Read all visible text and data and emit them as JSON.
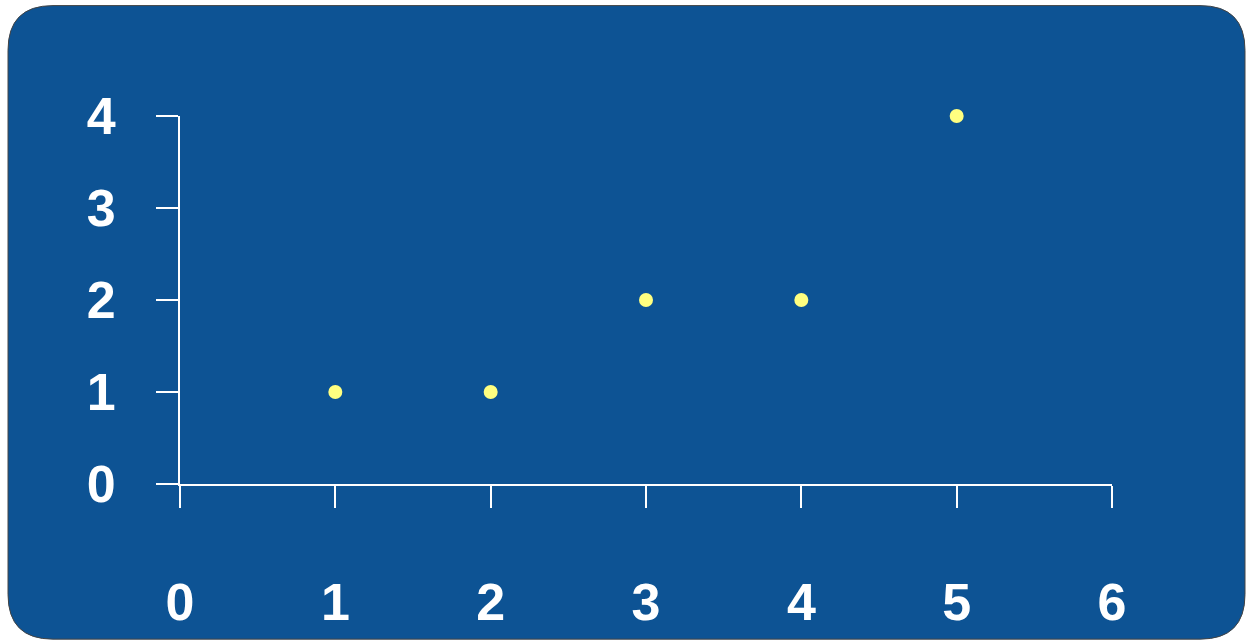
{
  "chart_data": {
    "type": "scatter",
    "x": [
      1,
      2,
      3,
      4,
      5
    ],
    "values": [
      1,
      1,
      2,
      2,
      4
    ],
    "color": "#ffff80",
    "marker": "circle",
    "xlim": [
      0,
      6
    ],
    "ylim": [
      0,
      4
    ],
    "xticks": [
      0,
      1,
      2,
      3,
      4,
      5,
      6
    ],
    "yticks": [
      0,
      1,
      2,
      3,
      4
    ],
    "grid": false
  }
}
